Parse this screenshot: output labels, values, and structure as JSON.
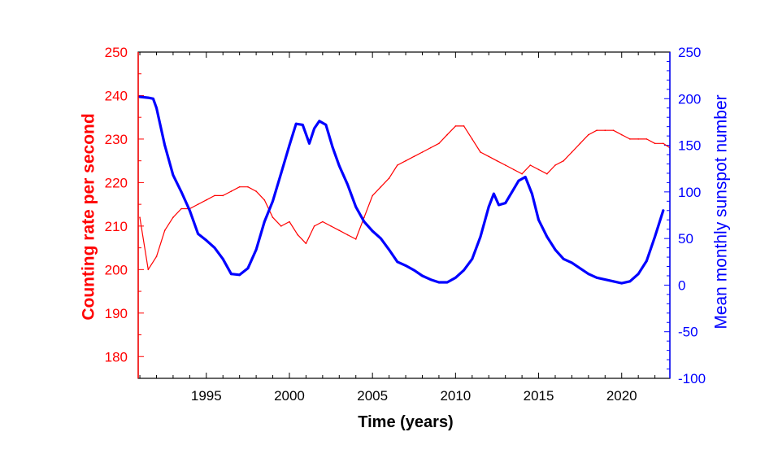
{
  "chart_data": {
    "type": "line",
    "title": "",
    "xlabel": "Time (years)",
    "ylabel_left": "Counting rate per second",
    "ylabel_right": "Mean monthly sunspot number",
    "xlim": [
      1990.9,
      2022.9
    ],
    "ylim_left": [
      175,
      250
    ],
    "ylim_right": [
      -100,
      250
    ],
    "x_ticks": [
      1995,
      2000,
      2005,
      2010,
      2015,
      2020
    ],
    "y_ticks_left": [
      180,
      190,
      200,
      210,
      220,
      230,
      240,
      250
    ],
    "y_ticks_right": [
      -100,
      -50,
      0,
      50,
      100,
      150,
      200,
      250
    ],
    "colors": {
      "counting_rate": "#ff0000",
      "sunspot": "#0000ff",
      "axis": "#000000"
    },
    "series": [
      {
        "name": "Counting rate per second",
        "axis": "left",
        "color": "#ff0000",
        "x": [
          1991.0,
          1991.5,
          1992.0,
          1992.5,
          1993.0,
          1993.5,
          1994.0,
          1994.5,
          1995.0,
          1995.5,
          1996.0,
          1996.5,
          1997.0,
          1997.5,
          1998.0,
          1998.5,
          1999.0,
          1999.5,
          2000.0,
          2000.5,
          2001.0,
          2001.5,
          2002.0,
          2002.5,
          2003.0,
          2003.5,
          2004.0,
          2004.5,
          2005.0,
          2005.5,
          2006.0,
          2006.5,
          2007.0,
          2007.5,
          2008.0,
          2008.5,
          2009.0,
          2009.5,
          2010.0,
          2010.5,
          2011.0,
          2011.5,
          2012.0,
          2012.5,
          2013.0,
          2013.5,
          2014.0,
          2014.5,
          2015.0,
          2015.5,
          2016.0,
          2016.5,
          2017.0,
          2017.5,
          2018.0,
          2018.5,
          2019.0,
          2019.5,
          2020.0,
          2020.5,
          2021.0,
          2021.5,
          2022.0,
          2022.5,
          2022.9
        ],
        "values": [
          212,
          200,
          203,
          209,
          212,
          214,
          214,
          215,
          216,
          217,
          217,
          218,
          219,
          219,
          218,
          216,
          212,
          210,
          211,
          208,
          206,
          210,
          211,
          210,
          209,
          208,
          207,
          212,
          217,
          219,
          221,
          224,
          225,
          226,
          227,
          228,
          229,
          231,
          233,
          233,
          230,
          227,
          226,
          225,
          224,
          223,
          222,
          224,
          223,
          222,
          224,
          225,
          227,
          229,
          231,
          232,
          232,
          232,
          231,
          230,
          230,
          230,
          229,
          229,
          228
        ]
      },
      {
        "name": "Mean monthly sunspot number",
        "axis": "right",
        "color": "#0000ff",
        "x": [
          1991.0,
          1991.5,
          1991.8,
          1992.0,
          1992.5,
          1993.0,
          1993.5,
          1994.0,
          1994.5,
          1995.0,
          1995.5,
          1996.0,
          1996.5,
          1997.0,
          1997.5,
          1998.0,
          1998.5,
          1999.0,
          1999.5,
          2000.0,
          2000.4,
          2000.8,
          2001.2,
          2001.5,
          2001.8,
          2002.2,
          2002.6,
          2003.0,
          2003.5,
          2004.0,
          2004.5,
          2005.0,
          2005.5,
          2006.0,
          2006.5,
          2007.0,
          2007.5,
          2008.0,
          2008.5,
          2009.0,
          2009.5,
          2010.0,
          2010.5,
          2011.0,
          2011.5,
          2012.0,
          2012.3,
          2012.6,
          2013.0,
          2013.4,
          2013.8,
          2014.2,
          2014.6,
          2015.0,
          2015.5,
          2016.0,
          2016.5,
          2017.0,
          2017.5,
          2018.0,
          2018.5,
          2019.0,
          2019.5,
          2020.0,
          2020.5,
          2021.0,
          2021.5,
          2022.0,
          2022.5
        ],
        "values": [
          202,
          201,
          200,
          190,
          150,
          118,
          100,
          80,
          55,
          48,
          40,
          28,
          12,
          11,
          18,
          38,
          68,
          90,
          120,
          150,
          173,
          172,
          152,
          168,
          176,
          172,
          148,
          128,
          108,
          84,
          68,
          58,
          50,
          38,
          25,
          21,
          16,
          10,
          6,
          3,
          3,
          8,
          16,
          28,
          52,
          84,
          98,
          86,
          88,
          100,
          112,
          116,
          98,
          70,
          52,
          38,
          28,
          24,
          18,
          12,
          8,
          6,
          4,
          2,
          4,
          12,
          26,
          52,
          80
        ]
      }
    ]
  }
}
